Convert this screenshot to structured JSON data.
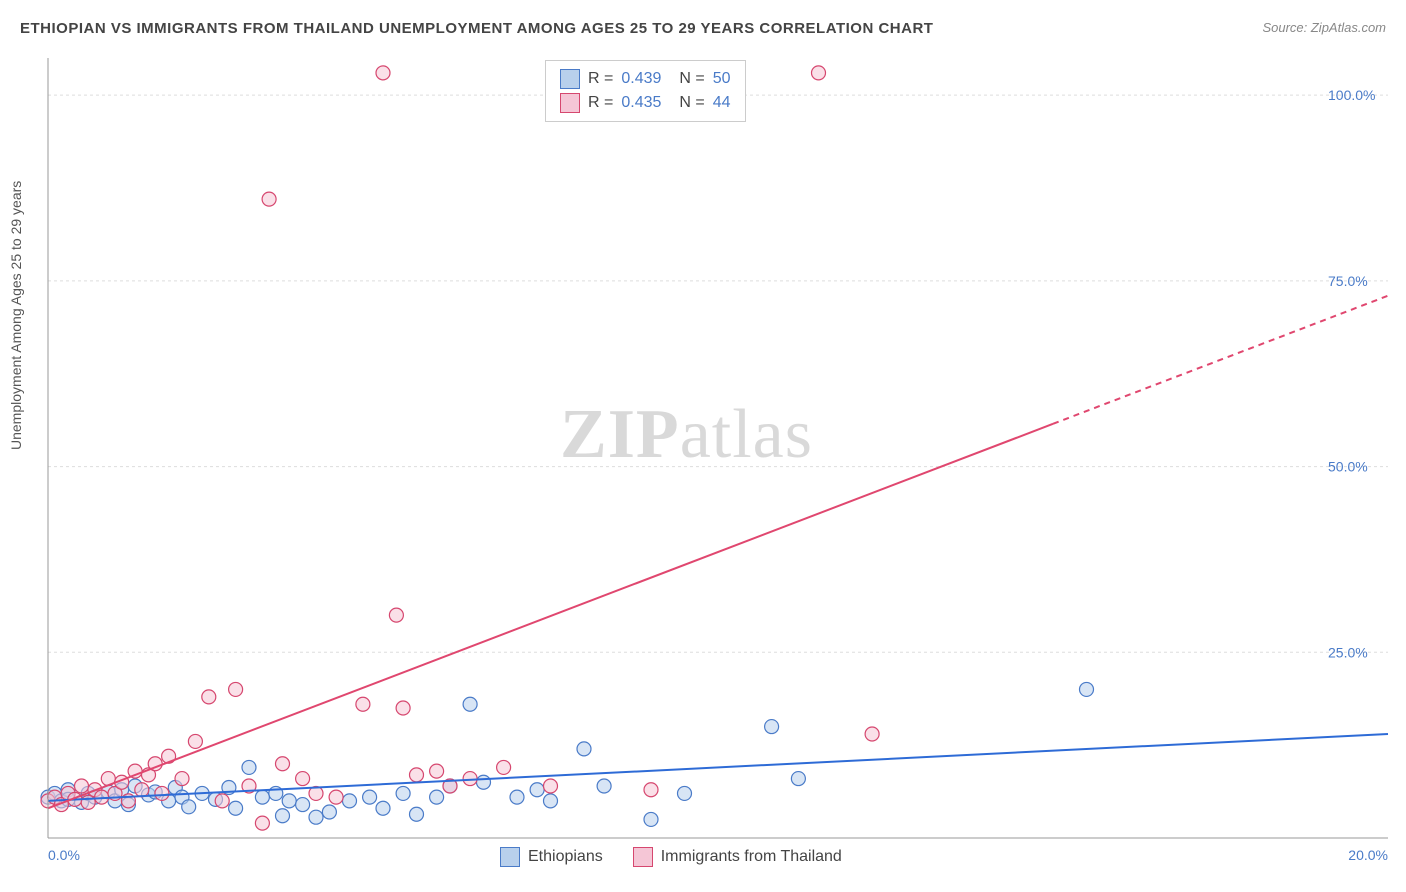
{
  "title": "ETHIOPIAN VS IMMIGRANTS FROM THAILAND UNEMPLOYMENT AMONG AGES 25 TO 29 YEARS CORRELATION CHART",
  "source": "Source: ZipAtlas.com",
  "ylabel": "Unemployment Among Ages 25 to 29 years",
  "watermark_bold": "ZIP",
  "watermark_rest": "atlas",
  "chart": {
    "type": "scatter",
    "xlim": [
      0,
      20
    ],
    "ylim": [
      0,
      105
    ],
    "x_ticks": [
      {
        "v": 0,
        "l": "0.0%"
      },
      {
        "v": 20,
        "l": "20.0%"
      }
    ],
    "y_ticks": [
      {
        "v": 25,
        "l": "25.0%"
      },
      {
        "v": 50,
        "l": "50.0%"
      },
      {
        "v": 75,
        "l": "75.0%"
      },
      {
        "v": 100,
        "l": "100.0%"
      }
    ],
    "y_grid": [
      25,
      50,
      75,
      100
    ],
    "marker_radius": 7,
    "marker_opacity": 0.55,
    "series": [
      {
        "name": "Ethiopians",
        "color_fill": "#b8d0ec",
        "color_stroke": "#4a7bc8",
        "R": "0.439",
        "N": "50",
        "trend": {
          "x1": 0,
          "y1": 5,
          "x2": 20,
          "y2": 14,
          "dashed": false,
          "stroke": "#2e6bd6",
          "width": 2
        },
        "points": [
          [
            0.0,
            5.5
          ],
          [
            0.1,
            6.0
          ],
          [
            0.2,
            5.0
          ],
          [
            0.3,
            6.5
          ],
          [
            0.3,
            5.2
          ],
          [
            0.5,
            4.8
          ],
          [
            0.6,
            6.0
          ],
          [
            0.7,
            5.5
          ],
          [
            0.9,
            6.2
          ],
          [
            1.0,
            5.0
          ],
          [
            1.1,
            6.5
          ],
          [
            1.2,
            4.5
          ],
          [
            1.3,
            7.0
          ],
          [
            1.5,
            5.8
          ],
          [
            1.6,
            6.2
          ],
          [
            1.8,
            5.0
          ],
          [
            1.9,
            6.8
          ],
          [
            2.0,
            5.5
          ],
          [
            2.1,
            4.2
          ],
          [
            2.3,
            6.0
          ],
          [
            2.5,
            5.2
          ],
          [
            2.7,
            6.8
          ],
          [
            2.8,
            4.0
          ],
          [
            3.0,
            9.5
          ],
          [
            3.2,
            5.5
          ],
          [
            3.4,
            6.0
          ],
          [
            3.5,
            3.0
          ],
          [
            3.6,
            5.0
          ],
          [
            3.8,
            4.5
          ],
          [
            4.0,
            2.8
          ],
          [
            4.2,
            3.5
          ],
          [
            4.5,
            5.0
          ],
          [
            4.8,
            5.5
          ],
          [
            5.0,
            4.0
          ],
          [
            5.3,
            6.0
          ],
          [
            5.5,
            3.2
          ],
          [
            5.8,
            5.5
          ],
          [
            6.0,
            7.0
          ],
          [
            6.3,
            18.0
          ],
          [
            6.5,
            7.5
          ],
          [
            7.0,
            5.5
          ],
          [
            7.3,
            6.5
          ],
          [
            7.5,
            5.0
          ],
          [
            8.0,
            12.0
          ],
          [
            8.3,
            7.0
          ],
          [
            9.0,
            2.5
          ],
          [
            9.5,
            6.0
          ],
          [
            10.8,
            15.0
          ],
          [
            15.5,
            20.0
          ],
          [
            11.2,
            8.0
          ]
        ]
      },
      {
        "name": "Immigrants from Thailand",
        "color_fill": "#f5c6d6",
        "color_stroke": "#d6476f",
        "R": "0.435",
        "N": "44",
        "trend": {
          "x1": 0,
          "y1": 4,
          "x2": 20,
          "y2": 73,
          "dashed_from": 15.0,
          "stroke": "#e0476f",
          "width": 2
        },
        "points": [
          [
            0.0,
            5.0
          ],
          [
            0.1,
            5.5
          ],
          [
            0.2,
            4.5
          ],
          [
            0.3,
            6.0
          ],
          [
            0.4,
            5.2
          ],
          [
            0.5,
            7.0
          ],
          [
            0.6,
            4.8
          ],
          [
            0.7,
            6.5
          ],
          [
            0.8,
            5.5
          ],
          [
            0.9,
            8.0
          ],
          [
            1.0,
            6.0
          ],
          [
            1.1,
            7.5
          ],
          [
            1.2,
            5.0
          ],
          [
            1.3,
            9.0
          ],
          [
            1.4,
            6.5
          ],
          [
            1.5,
            8.5
          ],
          [
            1.6,
            10.0
          ],
          [
            1.7,
            6.0
          ],
          [
            1.8,
            11.0
          ],
          [
            2.0,
            8.0
          ],
          [
            2.2,
            13.0
          ],
          [
            2.4,
            19.0
          ],
          [
            2.6,
            5.0
          ],
          [
            2.8,
            20.0
          ],
          [
            3.0,
            7.0
          ],
          [
            3.3,
            86.0
          ],
          [
            3.5,
            10.0
          ],
          [
            3.8,
            8.0
          ],
          [
            4.0,
            6.0
          ],
          [
            4.3,
            5.5
          ],
          [
            4.7,
            18.0
          ],
          [
            5.0,
            103.0
          ],
          [
            5.2,
            30.0
          ],
          [
            5.3,
            17.5
          ],
          [
            5.5,
            8.5
          ],
          [
            5.8,
            9.0
          ],
          [
            6.0,
            7.0
          ],
          [
            6.3,
            8.0
          ],
          [
            6.8,
            9.5
          ],
          [
            7.5,
            7.0
          ],
          [
            9.0,
            6.5
          ],
          [
            11.5,
            103.0
          ],
          [
            12.3,
            14.0
          ],
          [
            3.2,
            2.0
          ]
        ]
      }
    ]
  },
  "legend": [
    {
      "swatch": "blue",
      "label": "Ethiopians"
    },
    {
      "swatch": "pink",
      "label": "Immigrants from Thailand"
    }
  ]
}
